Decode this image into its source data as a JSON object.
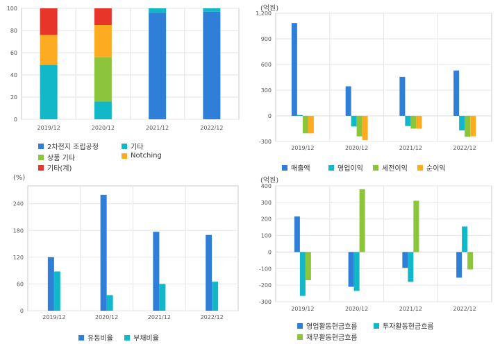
{
  "colors": {
    "blue": "#2f7ed8",
    "teal": "#12b8c8",
    "green": "#8cc43c",
    "orange": "#fdab21",
    "red": "#e8352a",
    "grid": "#e6e6e6",
    "frame": "#c8c8c8"
  },
  "chart_data": [
    {
      "id": "composition",
      "type": "bar",
      "stacked": true,
      "unit": "",
      "categories": [
        "2019/12",
        "2020/12",
        "2021/12",
        "2022/12"
      ],
      "ylim": [
        0,
        100
      ],
      "yticks": [
        0,
        20,
        40,
        60,
        80,
        100
      ],
      "series": [
        {
          "name": "2차전지 조립공정",
          "color": "blue",
          "values": [
            0,
            0,
            96,
            97
          ]
        },
        {
          "name": "기타",
          "color": "teal",
          "values": [
            49,
            16,
            4,
            3
          ]
        },
        {
          "name": "상품 기타",
          "color": "green",
          "values": [
            0,
            40,
            0,
            0
          ]
        },
        {
          "name": "Notching",
          "color": "orange",
          "values": [
            27,
            29,
            0,
            0
          ]
        },
        {
          "name": "기타(계)",
          "color": "red",
          "values": [
            24,
            15,
            0,
            0
          ]
        }
      ],
      "legend_placement": "bottom"
    },
    {
      "id": "profit",
      "type": "bar",
      "unit": "(억원)",
      "categories": [
        "2019/12",
        "2020/12",
        "2021/12",
        "2022/12"
      ],
      "ylim": [
        -300,
        1200
      ],
      "yticks": [
        -300,
        0,
        300,
        600,
        900,
        1200
      ],
      "ytick_labels": [
        "-300",
        "0",
        "300",
        "600",
        "900",
        "1,200"
      ],
      "series": [
        {
          "name": "매출액",
          "color": "blue",
          "values": [
            1085,
            345,
            455,
            530
          ]
        },
        {
          "name": "영업이익",
          "color": "teal",
          "values": [
            10,
            -125,
            -120,
            -170
          ]
        },
        {
          "name": "세전이익",
          "color": "green",
          "values": [
            -205,
            -240,
            -150,
            -245
          ]
        },
        {
          "name": "순이익",
          "color": "orange",
          "values": [
            -205,
            -285,
            -150,
            -240
          ]
        }
      ],
      "legend_placement": "bottom"
    },
    {
      "id": "ratio",
      "type": "bar",
      "unit": "(%)",
      "categories": [
        "2019/12",
        "2020/12",
        "2021/12",
        "2022/12"
      ],
      "ylim": [
        0,
        280
      ],
      "yticks": [
        0,
        60,
        120,
        180,
        240
      ],
      "series": [
        {
          "name": "유동비율",
          "color": "blue",
          "values": [
            120,
            260,
            177,
            170
          ]
        },
        {
          "name": "부채비율",
          "color": "teal",
          "values": [
            88,
            35,
            60,
            65
          ]
        }
      ],
      "legend_placement": "bottom"
    },
    {
      "id": "cashflow",
      "type": "bar",
      "unit": "(억원)",
      "categories": [
        "2019/12",
        "2020/12",
        "2021/12",
        "2022/12"
      ],
      "ylim": [
        -300,
        400
      ],
      "yticks": [
        -300,
        -200,
        -100,
        0,
        100,
        200,
        300,
        400
      ],
      "series": [
        {
          "name": "영업활동현금흐름",
          "color": "blue",
          "values": [
            215,
            -210,
            -95,
            -155
          ]
        },
        {
          "name": "투자활동현금흐름",
          "color": "teal",
          "values": [
            -265,
            -235,
            -180,
            155
          ]
        },
        {
          "name": "재무활동현금흐름",
          "color": "green",
          "values": [
            -170,
            380,
            310,
            -105
          ]
        }
      ],
      "legend_placement": "bottom"
    }
  ]
}
